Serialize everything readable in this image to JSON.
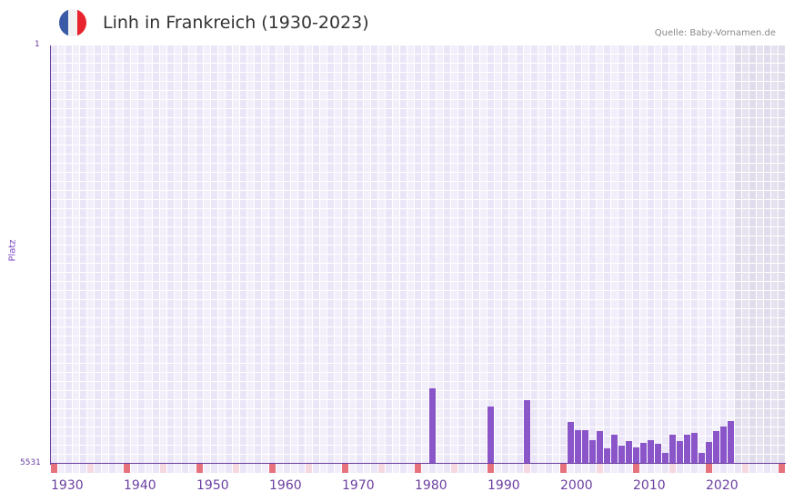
{
  "header": {
    "title": "Linh in Frankreich (1930-2023)",
    "source": "Quelle: Baby-Vornamen.de",
    "flag_colors": [
      "#3a5aa8",
      "#f2f2f2",
      "#e8232e"
    ]
  },
  "colors": {
    "bar": "#8a55c9",
    "axis": "#6a3fa0",
    "decade_tick": "#e5727d",
    "half_decade_tick": "#f5d8e0"
  },
  "chart_data": {
    "type": "bar",
    "title": "Linh in Frankreich (1930-2023)",
    "xlabel": "",
    "ylabel": "Platz",
    "y_inverted": true,
    "ylim": [
      1,
      5531
    ],
    "y_tick_labels": [
      "1",
      "5531"
    ],
    "x_range": [
      1930,
      2030
    ],
    "data_range": [
      1930,
      2023
    ],
    "future_shaded_from": 2024,
    "x_tick_labels": [
      "1930",
      "1940",
      "1950",
      "1960",
      "1970",
      "1980",
      "1990",
      "2000",
      "2010",
      "2020"
    ],
    "grid": true,
    "legend": null,
    "categories": [
      1982,
      1990,
      1995,
      2001,
      2002,
      2003,
      2004,
      2005,
      2006,
      2007,
      2008,
      2009,
      2010,
      2011,
      2012,
      2013,
      2014,
      2015,
      2016,
      2017,
      2018,
      2019,
      2020,
      2021,
      2022,
      2023
    ],
    "values": [
      4533,
      4774,
      4690,
      4978,
      5086,
      5086,
      5219,
      5098,
      5327,
      5147,
      5291,
      5231,
      5315,
      5255,
      5219,
      5267,
      5387,
      5147,
      5231,
      5147,
      5123,
      5387,
      5243,
      5098,
      5038,
      4966
    ]
  }
}
